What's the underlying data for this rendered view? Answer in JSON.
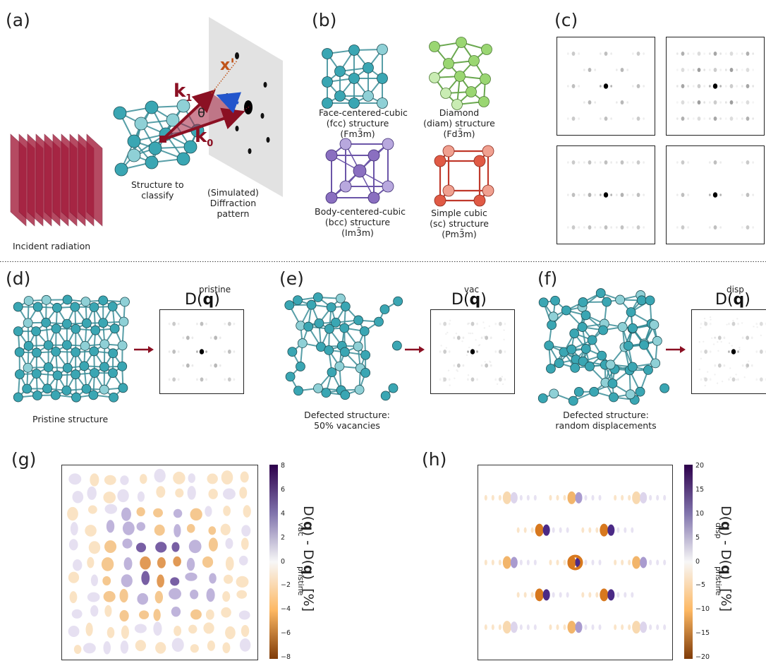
{
  "panels": {
    "a": "(a)",
    "b": "(b)",
    "c": "(c)",
    "d": "(d)",
    "e": "(e)",
    "f": "(f)",
    "g": "(g)",
    "h": "(h)"
  },
  "panel_a": {
    "incident": "Incident radiation",
    "structure_line1": "Structure to",
    "structure_line2": "classify",
    "pattern_line1": "(Simulated)",
    "pattern_line2": "Diffraction",
    "pattern_line3": "pattern",
    "k1": "k",
    "k1_sub": "1",
    "k0": "k",
    "k0_sub": "0",
    "q": "q",
    "theta": "θ",
    "xprime": "x'"
  },
  "panel_b": {
    "fcc": [
      "Face-centered-cubic",
      "(fcc) structure",
      "(Fm3̄m)"
    ],
    "diam": [
      "Diamond",
      "(diam) structure",
      "(Fd3̄m)"
    ],
    "bcc": [
      "Body-centered-cubic",
      "(bcc) structure",
      "(Im3̄m)"
    ],
    "sc": [
      "Simple cubic",
      "(sc) structure",
      "(Pm3̄m)"
    ]
  },
  "panel_d": {
    "caption": "Pristine structure",
    "label_main": "D(",
    "label_q": "q",
    "label_close": ")",
    "label_sup": "pristine"
  },
  "panel_e": {
    "caption1": "Defected structure:",
    "caption2": "50% vacancies",
    "label_main": "D(",
    "label_q": "q",
    "label_close": ")",
    "label_sup": "vac"
  },
  "panel_f": {
    "caption1": "Defected structure:",
    "caption2": "random displacements",
    "label_main": "D(",
    "label_q": "q",
    "label_close": ")",
    "label_sup": "disp"
  },
  "panel_g": {
    "ticks": [
      "8",
      "6",
      "4",
      "2",
      "0",
      "−2",
      "−4",
      "−6",
      "−8"
    ],
    "label": "D(q)  - D(q)       [%]",
    "sup1": "vac",
    "sup2": "pristine"
  },
  "panel_h": {
    "ticks": [
      "20",
      "15",
      "10",
      "5",
      "0",
      "−5",
      "−10",
      "−15",
      "−20"
    ],
    "label": "D(q)  - D(q)       [%]",
    "sup1": "disp",
    "sup2": "pristine"
  },
  "colors": {
    "teal": "#3aa6b3",
    "teal_light": "#8fd0d6",
    "bond": "#3a8e98",
    "green": "#9ad672",
    "purple": "#8a6fc0",
    "red": "#e05a45",
    "radiation": "#a31d3c",
    "arrow": "#8b1023",
    "q_arrow": "#2255cc",
    "xprime": "#c0541a"
  }
}
